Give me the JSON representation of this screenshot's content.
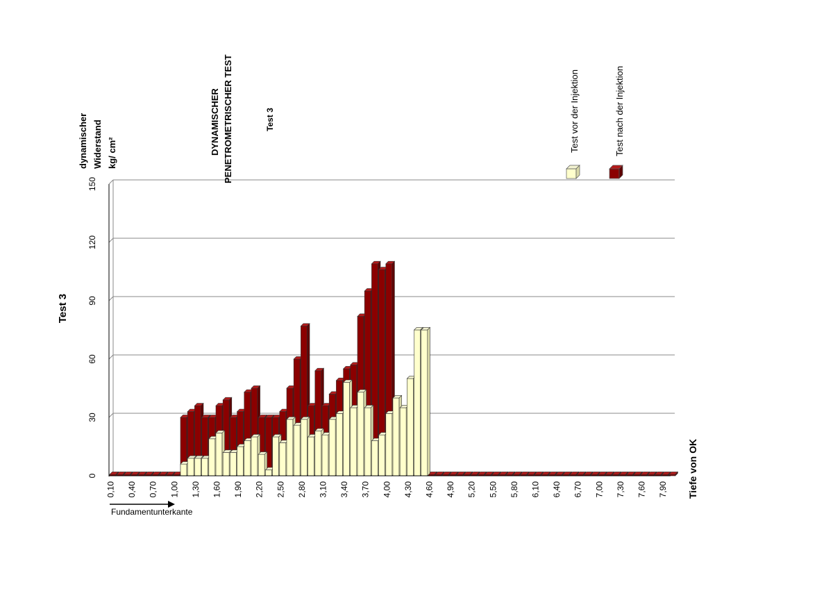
{
  "chart_data": {
    "type": "bar",
    "title": "DYNAMISCHER PENETROMETRISCHER TEST",
    "subtitle": "Test 3",
    "ylabel_side": "Test 3",
    "ylabel_top": [
      "dynamischer",
      "Widerstand",
      "kg/ cm²"
    ],
    "xlabel": "Tiefe von OK",
    "annotation": "Fundamentunterkante",
    "ylim": [
      0,
      150
    ],
    "yticks": [
      0,
      30,
      60,
      90,
      120,
      150
    ],
    "grid": true,
    "legend_position": "top-right",
    "x_tick_labels": [
      "0,10",
      "0,40",
      "0,70",
      "1,00",
      "1,30",
      "1,60",
      "1,90",
      "2,20",
      "2,50",
      "2,80",
      "3,10",
      "3,40",
      "3,70",
      "4,00",
      "4,30",
      "4,60",
      "4,90",
      "5,20",
      "5,50",
      "5,80",
      "6,10",
      "6,40",
      "6,70",
      "7,00",
      "7,30",
      "7,60",
      "7,90"
    ],
    "x": [
      "0,10",
      "0,20",
      "0,30",
      "0,40",
      "0,50",
      "0,60",
      "0,70",
      "0,80",
      "0,90",
      "1,00",
      "1,10",
      "1,20",
      "1,30",
      "1,40",
      "1,50",
      "1,60",
      "1,70",
      "1,80",
      "1,90",
      "2,00",
      "2,10",
      "2,20",
      "2,30",
      "2,40",
      "2,50",
      "2,60",
      "2,70",
      "2,80",
      "2,90",
      "3,00",
      "3,10",
      "3,20",
      "3,30",
      "3,40",
      "3,50",
      "3,60",
      "3,70",
      "3,80",
      "3,90",
      "4,00",
      "4,10",
      "4,20",
      "4,30",
      "4,40",
      "4,50",
      "4,60",
      "4,70",
      "4,80",
      "4,90",
      "5,00",
      "5,10",
      "5,20",
      "5,30",
      "5,40",
      "5,50",
      "5,60",
      "5,70",
      "5,80",
      "5,90",
      "6,00",
      "6,10",
      "6,20",
      "6,30",
      "6,40",
      "6,50",
      "6,60",
      "6,70",
      "6,80",
      "6,90",
      "7,00",
      "7,10",
      "7,20",
      "7,30",
      "7,40",
      "7,50",
      "7,60",
      "7,70",
      "7,80",
      "7,90",
      "8,00"
    ],
    "series": [
      {
        "name": "Test nach der Injektion",
        "color": "#8b0000",
        "values": [
          0,
          0,
          0,
          0,
          0,
          0,
          0,
          0,
          0,
          0,
          30,
          33,
          36,
          30,
          30,
          36,
          39,
          30,
          33,
          43,
          45,
          30,
          30,
          30,
          33,
          45,
          60,
          77,
          36,
          54,
          36,
          42,
          49,
          55,
          57,
          82,
          95,
          109,
          106,
          109,
          0,
          0,
          0,
          0,
          0,
          0,
          0,
          0,
          0,
          0,
          0,
          0,
          0,
          0,
          0,
          0,
          0,
          0,
          0,
          0,
          0,
          0,
          0,
          0,
          0,
          0,
          0,
          0,
          0,
          0,
          0,
          0,
          0,
          0,
          0,
          0,
          0,
          0,
          0,
          0
        ]
      },
      {
        "name": "Test vor der Injektion",
        "color": "#ffffcc",
        "values": [
          0,
          0,
          0,
          0,
          0,
          0,
          0,
          0,
          0,
          0,
          6,
          9,
          9,
          9,
          19,
          22,
          12,
          12,
          15,
          18,
          20,
          11,
          3,
          20,
          17,
          29,
          26,
          29,
          20,
          23,
          21,
          29,
          32,
          48,
          35,
          43,
          35,
          18,
          21,
          32,
          40,
          35,
          50,
          75,
          75,
          0,
          0,
          0,
          0,
          0,
          0,
          0,
          0,
          0,
          0,
          0,
          0,
          0,
          0,
          0,
          0,
          0,
          0,
          0,
          0,
          0,
          0,
          0,
          0,
          0,
          0,
          0,
          0,
          0,
          0,
          0,
          0,
          0,
          0,
          0
        ]
      }
    ]
  }
}
